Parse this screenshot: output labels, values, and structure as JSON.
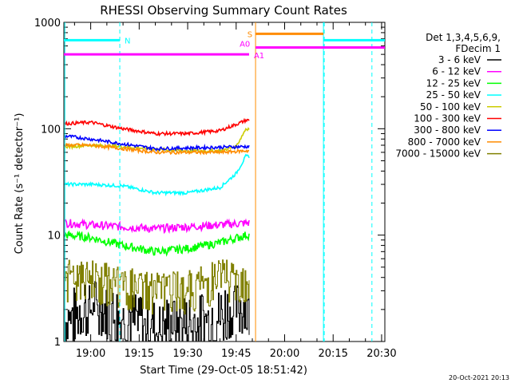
{
  "chart_data": {
    "type": "line",
    "title": "RHESSI Observing Summary Count Rates",
    "xlabel": "Start Time (29-Oct-05 18:51:42)",
    "ylabel": "Count Rate (s⁻¹ detector⁻¹)",
    "yscale": "log",
    "ylim": [
      1,
      1000
    ],
    "xlim": [
      "18:51:42",
      "20:31:00"
    ],
    "x_ticks": [
      "19:00",
      "19:15",
      "19:30",
      "19:45",
      "20:00",
      "20:15",
      "20:30"
    ],
    "y_ticks": [
      "1",
      "10",
      "100",
      "1000"
    ],
    "legend_header": [
      "Det 1,3,4,5,6,9,",
      "FDecim 1"
    ],
    "legend_position": "right",
    "series": [
      {
        "name": "3 - 6 keV",
        "color": "#000000",
        "times": [
          "18:53",
          "19:00",
          "19:10",
          "19:20",
          "19:30",
          "19:40",
          "19:48"
        ],
        "values": [
          2,
          2.5,
          2,
          1.6,
          1.7,
          2,
          2.5
        ]
      },
      {
        "name": "6 - 12 keV",
        "color": "#ff00ff",
        "times": [
          "18:53",
          "19:00",
          "19:10",
          "19:20",
          "19:30",
          "19:40",
          "19:48"
        ],
        "values": [
          13,
          12.5,
          12,
          11.5,
          12,
          12.5,
          13
        ]
      },
      {
        "name": "12 - 25 keV",
        "color": "#00ff00",
        "times": [
          "18:53",
          "19:00",
          "19:10",
          "19:20",
          "19:30",
          "19:40",
          "19:48"
        ],
        "values": [
          10,
          9.5,
          8,
          7,
          7.5,
          8.5,
          10
        ]
      },
      {
        "name": "25 - 50 keV",
        "color": "#00ffff",
        "times": [
          "18:53",
          "19:00",
          "19:10",
          "19:20",
          "19:30",
          "19:40",
          "19:45",
          "19:48"
        ],
        "values": [
          30,
          30,
          29,
          25,
          25,
          28,
          38,
          55
        ]
      },
      {
        "name": "50 - 100 keV",
        "color": "#cccc00",
        "times": [
          "18:53",
          "19:00",
          "19:10",
          "19:20",
          "19:30",
          "19:40",
          "19:45",
          "19:48"
        ],
        "values": [
          68,
          70,
          68,
          64,
          62,
          62,
          68,
          100
        ]
      },
      {
        "name": "100 - 300 keV",
        "color": "#ff0000",
        "times": [
          "18:53",
          "19:00",
          "19:10",
          "19:20",
          "19:30",
          "19:40",
          "19:45",
          "19:48"
        ],
        "values": [
          112,
          115,
          100,
          90,
          90,
          96,
          110,
          120
        ]
      },
      {
        "name": "300 - 800 keV",
        "color": "#0000ff",
        "times": [
          "18:53",
          "19:00",
          "19:10",
          "19:20",
          "19:30",
          "19:40",
          "19:48"
        ],
        "values": [
          85,
          80,
          72,
          65,
          66,
          67,
          68
        ]
      },
      {
        "name": "800 - 7000 keV",
        "color": "#ff8c00",
        "times": [
          "18:53",
          "19:00",
          "19:10",
          "19:20",
          "19:30",
          "19:40",
          "19:48"
        ],
        "values": [
          70,
          70,
          65,
          60,
          60,
          60,
          62
        ]
      },
      {
        "name": "7000 - 15000 keV",
        "color": "#808000",
        "times": [
          "18:53",
          "19:00",
          "19:10",
          "19:20",
          "19:30",
          "19:40",
          "19:48"
        ],
        "values": [
          4.5,
          4.5,
          3.8,
          3.5,
          3.5,
          4.5,
          4.5
        ]
      }
    ],
    "flag_bars": [
      {
        "label": "N",
        "color": "#00ffff",
        "value": 680,
        "segments": [
          [
            "18:51:42",
            "19:09"
          ],
          [
            "20:12",
            "20:31"
          ]
        ]
      },
      {
        "label": "S",
        "color": "#ff8c00",
        "value": 780,
        "segments": [
          [
            "19:51",
            "20:12"
          ]
        ]
      },
      {
        "label": "A0",
        "color": "#ff00ff",
        "value": 580,
        "segments": [
          [
            "19:51",
            "20:31"
          ]
        ]
      },
      {
        "label": "A1",
        "color": "#ff00ff",
        "value": 500,
        "segments": [
          [
            "18:51:42",
            "19:49"
          ]
        ]
      }
    ],
    "vertical_lines": [
      {
        "time": "18:52",
        "color": "#00ffff",
        "style": "solid"
      },
      {
        "time": "19:09",
        "color": "#00ffff",
        "style": "dashed"
      },
      {
        "time": "19:51",
        "color": "#ff8c00",
        "style": "solid"
      },
      {
        "time": "20:12",
        "color": "#00ffff",
        "style": "solid"
      },
      {
        "time": "20:12",
        "color": "#00ffff",
        "style": "dashed"
      },
      {
        "time": "20:27",
        "color": "#00ffff",
        "style": "dashed"
      }
    ]
  },
  "timestamp": "20-Oct-2021 20:13"
}
